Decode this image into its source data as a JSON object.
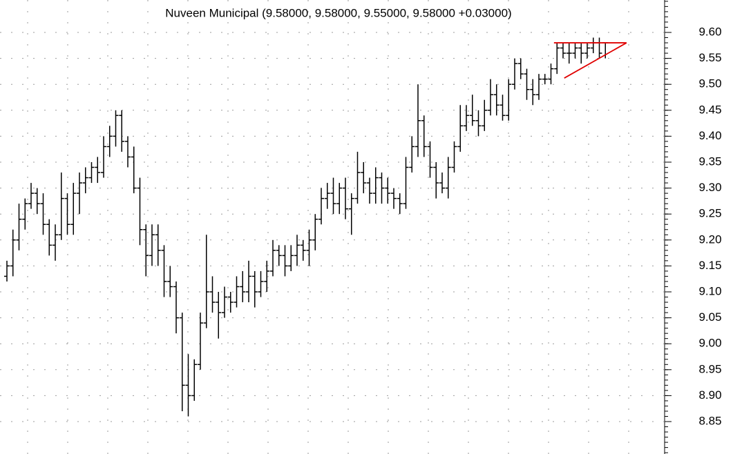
{
  "chart_data": {
    "type": "ohlc",
    "title": "Nuveen Municipal (9.58000, 9.58000, 9.55000, 9.58000 +0.03000)",
    "color": "#000000",
    "categories": [
      null,
      null,
      null,
      null,
      null,
      null,
      null,
      null,
      null,
      null,
      null,
      null,
      null,
      null,
      null,
      null,
      null,
      null,
      null,
      null,
      null,
      null,
      null,
      null,
      null,
      null,
      null,
      null,
      null,
      null,
      null,
      null,
      null,
      null,
      null,
      null,
      null,
      null,
      null,
      null,
      null,
      null,
      null,
      null,
      null,
      null,
      null,
      null,
      null,
      null,
      null,
      null,
      null,
      null,
      null,
      null,
      null,
      null,
      null,
      null,
      null,
      null,
      null,
      null,
      null,
      null,
      null,
      null,
      null,
      null,
      null,
      null,
      null,
      null,
      null,
      null,
      null,
      null,
      null,
      null,
      null,
      null,
      null,
      null,
      null,
      null,
      null,
      null,
      null,
      null,
      null,
      null,
      null,
      null,
      null,
      null,
      null,
      null,
      null,
      null
    ],
    "open": [
      9.13,
      9.15,
      9.2,
      9.24,
      9.27,
      9.29,
      9.27,
      9.23,
      9.19,
      9.21,
      9.28,
      9.23,
      9.29,
      9.31,
      9.32,
      9.34,
      9.33,
      9.38,
      9.4,
      9.44,
      9.39,
      9.36,
      9.3,
      9.22,
      9.17,
      9.21,
      9.18,
      9.12,
      9.11,
      9.05,
      8.92,
      8.9,
      8.96,
      9.04,
      9.1,
      9.08,
      9.06,
      9.09,
      9.08,
      9.11,
      9.1,
      9.13,
      9.1,
      9.12,
      9.14,
      9.18,
      9.17,
      9.15,
      9.17,
      9.19,
      9.18,
      9.2,
      9.24,
      9.28,
      9.29,
      9.27,
      9.3,
      9.26,
      9.28,
      9.33,
      9.31,
      9.29,
      9.32,
      9.3,
      9.29,
      9.28,
      9.27,
      9.34,
      9.38,
      9.43,
      9.38,
      9.34,
      9.31,
      9.3,
      9.34,
      9.38,
      9.42,
      9.44,
      9.43,
      9.42,
      9.45,
      9.48,
      9.46,
      9.44,
      9.5,
      9.54,
      9.52,
      9.49,
      9.48,
      9.51,
      9.51,
      9.53,
      9.57,
      9.56,
      9.56,
      9.57,
      9.56,
      9.57,
      9.58,
      9.58
    ],
    "high": [
      9.16,
      9.22,
      9.27,
      9.28,
      9.31,
      9.3,
      9.29,
      9.24,
      9.23,
      9.33,
      9.29,
      9.31,
      9.33,
      9.34,
      9.35,
      9.36,
      9.4,
      9.42,
      9.45,
      9.45,
      9.4,
      9.38,
      9.32,
      9.23,
      9.23,
      9.23,
      9.19,
      9.15,
      9.12,
      9.06,
      8.98,
      8.97,
      9.06,
      9.21,
      9.13,
      9.1,
      9.11,
      9.1,
      9.13,
      9.14,
      9.16,
      9.14,
      9.14,
      9.16,
      9.2,
      9.19,
      9.19,
      9.19,
      9.21,
      9.2,
      9.22,
      9.25,
      9.3,
      9.31,
      9.32,
      9.31,
      9.32,
      9.29,
      9.37,
      9.35,
      9.32,
      9.34,
      9.33,
      9.32,
      9.3,
      9.29,
      9.36,
      9.4,
      9.5,
      9.44,
      9.39,
      9.35,
      9.33,
      9.36,
      9.39,
      9.46,
      9.46,
      9.48,
      9.45,
      9.47,
      9.51,
      9.5,
      9.48,
      9.51,
      9.55,
      9.55,
      9.53,
      9.51,
      9.52,
      9.52,
      9.54,
      9.58,
      9.58,
      9.58,
      9.58,
      9.58,
      9.58,
      9.59,
      9.59,
      9.58
    ],
    "low": [
      9.12,
      9.13,
      9.18,
      9.22,
      9.26,
      9.25,
      9.21,
      9.17,
      9.16,
      9.2,
      9.21,
      9.21,
      9.25,
      9.29,
      9.31,
      9.31,
      9.32,
      9.36,
      9.38,
      9.37,
      9.34,
      9.29,
      9.19,
      9.13,
      9.15,
      9.15,
      9.09,
      9.09,
      9.02,
      8.87,
      8.86,
      8.89,
      8.95,
      9.03,
      9.06,
      9.01,
      9.05,
      9.06,
      9.07,
      9.08,
      9.08,
      9.07,
      9.09,
      9.1,
      9.13,
      9.15,
      9.13,
      9.14,
      9.15,
      9.16,
      9.15,
      9.18,
      9.23,
      9.26,
      9.25,
      9.25,
      9.24,
      9.21,
      9.27,
      9.29,
      9.27,
      9.27,
      9.27,
      9.27,
      9.26,
      9.25,
      9.26,
      9.33,
      9.36,
      9.36,
      9.32,
      9.28,
      9.29,
      9.28,
      9.33,
      9.37,
      9.41,
      9.42,
      9.4,
      9.41,
      9.44,
      9.44,
      9.43,
      9.43,
      9.49,
      9.51,
      9.47,
      9.46,
      9.47,
      9.5,
      9.5,
      9.52,
      9.55,
      9.54,
      9.55,
      9.54,
      9.55,
      9.56,
      9.55,
      9.55
    ],
    "close": [
      9.15,
      9.2,
      9.24,
      9.27,
      9.29,
      9.27,
      9.23,
      9.19,
      9.21,
      9.28,
      9.23,
      9.29,
      9.31,
      9.32,
      9.34,
      9.33,
      9.38,
      9.4,
      9.44,
      9.39,
      9.36,
      9.3,
      9.22,
      9.17,
      9.21,
      9.18,
      9.12,
      9.11,
      9.05,
      8.92,
      8.9,
      8.96,
      9.04,
      9.1,
      9.08,
      9.06,
      9.09,
      9.08,
      9.11,
      9.1,
      9.13,
      9.1,
      9.12,
      9.14,
      9.18,
      9.17,
      9.15,
      9.17,
      9.19,
      9.18,
      9.2,
      9.24,
      9.28,
      9.29,
      9.27,
      9.3,
      9.26,
      9.28,
      9.33,
      9.31,
      9.29,
      9.32,
      9.3,
      9.29,
      9.28,
      9.27,
      9.34,
      9.38,
      9.43,
      9.38,
      9.34,
      9.31,
      9.3,
      9.34,
      9.38,
      9.42,
      9.44,
      9.43,
      9.42,
      9.45,
      9.48,
      9.46,
      9.44,
      9.5,
      9.54,
      9.52,
      9.49,
      9.48,
      9.51,
      9.51,
      9.53,
      9.57,
      9.56,
      9.56,
      9.57,
      9.56,
      9.57,
      9.58,
      9.56,
      9.58
    ],
    "trendlines": [
      {
        "color": "#e00000",
        "x": [
          90.5,
          102.5
        ],
        "y": [
          9.58,
          9.58
        ]
      },
      {
        "color": "#e00000",
        "x": [
          102.5,
          92.2
        ],
        "y": [
          9.58,
          9.512
        ]
      }
    ],
    "ylim": [
      8.7875,
      9.6625
    ],
    "yticks": [
      {
        "value": 8.85,
        "label": "8.85"
      },
      {
        "value": 8.9,
        "label": "8.90"
      },
      {
        "value": 8.95,
        "label": "8.95"
      },
      {
        "value": 9.0,
        "label": "9.00"
      },
      {
        "value": 9.05,
        "label": "9.05"
      },
      {
        "value": 9.1,
        "label": "9.10"
      },
      {
        "value": 9.15,
        "label": "9.15"
      },
      {
        "value": 9.2,
        "label": "9.20"
      },
      {
        "value": 9.25,
        "label": "9.25"
      },
      {
        "value": 9.3,
        "label": "9.30"
      },
      {
        "value": 9.35,
        "label": "9.35"
      },
      {
        "value": 9.4,
        "label": "9.40"
      },
      {
        "value": 9.45,
        "label": "9.45"
      },
      {
        "value": 9.5,
        "label": "9.50"
      },
      {
        "value": 9.55,
        "label": "9.55"
      },
      {
        "value": 9.6,
        "label": "9.60"
      }
    ],
    "yminorticks": [
      8.79,
      8.8,
      8.81,
      8.82,
      8.83,
      8.84,
      8.85,
      8.86,
      8.87,
      8.88,
      8.89,
      8.9,
      8.91,
      8.92,
      8.93,
      8.94,
      8.95,
      8.96,
      8.97,
      8.98,
      8.99,
      9.0,
      9.01,
      9.02,
      9.03,
      9.04,
      9.05,
      9.06,
      9.07,
      9.08,
      9.09,
      9.1,
      9.11,
      9.12,
      9.13,
      9.14,
      9.15,
      9.16,
      9.17,
      9.18,
      9.19,
      9.2,
      9.21,
      9.22,
      9.23,
      9.24,
      9.25,
      9.26,
      9.27,
      9.28,
      9.29,
      9.3,
      9.31,
      9.32,
      9.33,
      9.34,
      9.35,
      9.36,
      9.37,
      9.38,
      9.39,
      9.4,
      9.41,
      9.42,
      9.43,
      9.44,
      9.45,
      9.46,
      9.47,
      9.48,
      9.49,
      9.5,
      9.51,
      9.52,
      9.53,
      9.54,
      9.55,
      9.56,
      9.57,
      9.58,
      9.59,
      9.6,
      9.61,
      9.62,
      9.63,
      9.64,
      9.65,
      9.66
    ],
    "grid": true
  }
}
